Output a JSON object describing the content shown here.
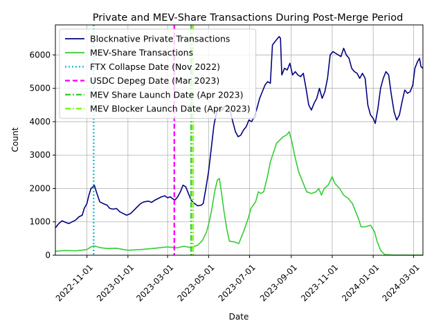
{
  "chart_data": {
    "type": "line",
    "title": "Private and MEV-Share Transactions During Post-Merge Period",
    "xlabel": "Date",
    "ylabel": "Count",
    "xlim": [
      "2022-09-15",
      "2024-03-15"
    ],
    "ylim": [
      0,
      6900
    ],
    "grid": true,
    "legend_position": "top-left",
    "x_ticks": [
      "2022-11-01",
      "2023-01-01",
      "2023-03-01",
      "2023-05-01",
      "2023-07-01",
      "2023-09-01",
      "2023-11-01",
      "2024-01-01",
      "2024-03-01"
    ],
    "y_ticks": [
      0,
      1000,
      2000,
      3000,
      4000,
      5000,
      6000
    ],
    "series": [
      {
        "name": "Blocknative Private Transactions",
        "color": "#000080",
        "style": "solid",
        "points": [
          [
            "2022-09-15",
            820
          ],
          [
            "2022-09-20",
            950
          ],
          [
            "2022-09-25",
            1030
          ],
          [
            "2022-10-01",
            980
          ],
          [
            "2022-10-05",
            950
          ],
          [
            "2022-10-10",
            1000
          ],
          [
            "2022-10-15",
            1050
          ],
          [
            "2022-10-20",
            1150
          ],
          [
            "2022-10-25",
            1200
          ],
          [
            "2022-10-28",
            1400
          ],
          [
            "2022-11-01",
            1550
          ],
          [
            "2022-11-04",
            1800
          ],
          [
            "2022-11-07",
            2000
          ],
          [
            "2022-11-10",
            2050
          ],
          [
            "2022-11-12",
            2100
          ],
          [
            "2022-11-15",
            1900
          ],
          [
            "2022-11-20",
            1600
          ],
          [
            "2022-11-25",
            1550
          ],
          [
            "2022-12-01",
            1500
          ],
          [
            "2022-12-05",
            1400
          ],
          [
            "2022-12-10",
            1380
          ],
          [
            "2022-12-15",
            1400
          ],
          [
            "2022-12-20",
            1300
          ],
          [
            "2022-12-25",
            1250
          ],
          [
            "2022-12-30",
            1200
          ],
          [
            "2023-01-05",
            1250
          ],
          [
            "2023-01-10",
            1350
          ],
          [
            "2023-01-15",
            1450
          ],
          [
            "2023-01-20",
            1550
          ],
          [
            "2023-01-25",
            1600
          ],
          [
            "2023-02-01",
            1620
          ],
          [
            "2023-02-05",
            1580
          ],
          [
            "2023-02-10",
            1650
          ],
          [
            "2023-02-15",
            1700
          ],
          [
            "2023-02-20",
            1750
          ],
          [
            "2023-02-25",
            1780
          ],
          [
            "2023-03-01",
            1720
          ],
          [
            "2023-03-05",
            1750
          ],
          [
            "2023-03-08",
            1700
          ],
          [
            "2023-03-12",
            1650
          ],
          [
            "2023-03-16",
            1750
          ],
          [
            "2023-03-20",
            1900
          ],
          [
            "2023-03-24",
            2100
          ],
          [
            "2023-03-28",
            2050
          ],
          [
            "2023-04-01",
            1850
          ],
          [
            "2023-04-05",
            1650
          ],
          [
            "2023-04-10",
            1550
          ],
          [
            "2023-04-15",
            1480
          ],
          [
            "2023-04-20",
            1500
          ],
          [
            "2023-04-23",
            1550
          ],
          [
            "2023-04-27",
            2000
          ],
          [
            "2023-05-01",
            2500
          ],
          [
            "2023-05-05",
            3200
          ],
          [
            "2023-05-09",
            3900
          ],
          [
            "2023-05-13",
            4300
          ],
          [
            "2023-05-17",
            4400
          ],
          [
            "2023-05-21",
            4350
          ],
          [
            "2023-05-25",
            4450
          ],
          [
            "2023-05-29",
            4500
          ],
          [
            "2023-06-02",
            4350
          ],
          [
            "2023-06-06",
            4000
          ],
          [
            "2023-06-10",
            3700
          ],
          [
            "2023-06-14",
            3550
          ],
          [
            "2023-06-18",
            3600
          ],
          [
            "2023-06-22",
            3750
          ],
          [
            "2023-06-26",
            3850
          ],
          [
            "2023-06-30",
            4050
          ],
          [
            "2023-07-04",
            4000
          ],
          [
            "2023-07-08",
            4150
          ],
          [
            "2023-07-12",
            4400
          ],
          [
            "2023-07-16",
            4700
          ],
          [
            "2023-07-20",
            4900
          ],
          [
            "2023-07-24",
            5100
          ],
          [
            "2023-07-28",
            5200
          ],
          [
            "2023-08-01",
            5150
          ],
          [
            "2023-08-04",
            6300
          ],
          [
            "2023-08-08",
            6400
          ],
          [
            "2023-08-12",
            6500
          ],
          [
            "2023-08-14",
            6550
          ],
          [
            "2023-08-16",
            6500
          ],
          [
            "2023-08-18",
            5400
          ],
          [
            "2023-08-22",
            5600
          ],
          [
            "2023-08-26",
            5550
          ],
          [
            "2023-08-30",
            5750
          ],
          [
            "2023-09-03",
            5400
          ],
          [
            "2023-09-07",
            5500
          ],
          [
            "2023-09-11",
            5400
          ],
          [
            "2023-09-15",
            5350
          ],
          [
            "2023-09-19",
            5450
          ],
          [
            "2023-09-23",
            5000
          ],
          [
            "2023-09-27",
            4500
          ],
          [
            "2023-10-01",
            4350
          ],
          [
            "2023-10-05",
            4550
          ],
          [
            "2023-10-09",
            4700
          ],
          [
            "2023-10-13",
            5000
          ],
          [
            "2023-10-17",
            4700
          ],
          [
            "2023-10-21",
            4900
          ],
          [
            "2023-10-25",
            5300
          ],
          [
            "2023-10-29",
            6000
          ],
          [
            "2023-11-02",
            6100
          ],
          [
            "2023-11-06",
            6050
          ],
          [
            "2023-11-10",
            6000
          ],
          [
            "2023-11-14",
            5950
          ],
          [
            "2023-11-18",
            6200
          ],
          [
            "2023-11-22",
            6000
          ],
          [
            "2023-11-26",
            5900
          ],
          [
            "2023-11-30",
            5600
          ],
          [
            "2023-12-04",
            5500
          ],
          [
            "2023-12-08",
            5450
          ],
          [
            "2023-12-12",
            5300
          ],
          [
            "2023-12-16",
            5450
          ],
          [
            "2023-12-20",
            5300
          ],
          [
            "2023-12-24",
            4500
          ],
          [
            "2023-12-28",
            4200
          ],
          [
            "2024-01-01",
            4100
          ],
          [
            "2024-01-04",
            3950
          ],
          [
            "2024-01-08",
            4400
          ],
          [
            "2024-01-12",
            5000
          ],
          [
            "2024-01-16",
            5300
          ],
          [
            "2024-01-20",
            5500
          ],
          [
            "2024-01-24",
            5400
          ],
          [
            "2024-01-28",
            4800
          ],
          [
            "2024-02-01",
            4300
          ],
          [
            "2024-02-05",
            4050
          ],
          [
            "2024-02-09",
            4200
          ],
          [
            "2024-02-13",
            4600
          ],
          [
            "2024-02-17",
            4950
          ],
          [
            "2024-02-21",
            4850
          ],
          [
            "2024-02-25",
            4900
          ],
          [
            "2024-02-29",
            5100
          ],
          [
            "2024-03-03",
            5600
          ],
          [
            "2024-03-07",
            5800
          ],
          [
            "2024-03-10",
            5900
          ],
          [
            "2024-03-12",
            5650
          ],
          [
            "2024-03-15",
            5600
          ]
        ]
      },
      {
        "name": "MEV-Share Transactions",
        "color": "#32cd32",
        "style": "solid",
        "points": [
          [
            "2022-09-15",
            120
          ],
          [
            "2022-10-01",
            140
          ],
          [
            "2022-10-15",
            130
          ],
          [
            "2022-11-01",
            170
          ],
          [
            "2022-11-07",
            250
          ],
          [
            "2022-11-12",
            280
          ],
          [
            "2022-11-20",
            230
          ],
          [
            "2022-12-01",
            200
          ],
          [
            "2022-12-15",
            210
          ],
          [
            "2023-01-01",
            150
          ],
          [
            "2023-01-20",
            170
          ],
          [
            "2023-02-10",
            210
          ],
          [
            "2023-03-01",
            250
          ],
          [
            "2023-03-15",
            220
          ],
          [
            "2023-03-25",
            270
          ],
          [
            "2023-04-05",
            230
          ],
          [
            "2023-04-15",
            300
          ],
          [
            "2023-04-22",
            450
          ],
          [
            "2023-04-28",
            700
          ],
          [
            "2023-05-02",
            1000
          ],
          [
            "2023-05-06",
            1400
          ],
          [
            "2023-05-10",
            1900
          ],
          [
            "2023-05-14",
            2250
          ],
          [
            "2023-05-17",
            2300
          ],
          [
            "2023-05-20",
            1900
          ],
          [
            "2023-05-24",
            1300
          ],
          [
            "2023-05-28",
            800
          ],
          [
            "2023-06-01",
            420
          ],
          [
            "2023-06-08",
            400
          ],
          [
            "2023-06-15",
            350
          ],
          [
            "2023-06-22",
            700
          ],
          [
            "2023-06-29",
            1100
          ],
          [
            "2023-07-03",
            1400
          ],
          [
            "2023-07-10",
            1600
          ],
          [
            "2023-07-14",
            1900
          ],
          [
            "2023-07-18",
            1850
          ],
          [
            "2023-07-22",
            1900
          ],
          [
            "2023-07-27",
            2300
          ],
          [
            "2023-08-01",
            2800
          ],
          [
            "2023-08-06",
            3100
          ],
          [
            "2023-08-10",
            3350
          ],
          [
            "2023-08-15",
            3450
          ],
          [
            "2023-08-20",
            3550
          ],
          [
            "2023-08-25",
            3600
          ],
          [
            "2023-08-29",
            3700
          ],
          [
            "2023-09-02",
            3400
          ],
          [
            "2023-09-06",
            3000
          ],
          [
            "2023-09-12",
            2500
          ],
          [
            "2023-09-18",
            2200
          ],
          [
            "2023-09-24",
            1900
          ],
          [
            "2023-10-01",
            1850
          ],
          [
            "2023-10-08",
            1900
          ],
          [
            "2023-10-12",
            2000
          ],
          [
            "2023-10-16",
            1800
          ],
          [
            "2023-10-20",
            2000
          ],
          [
            "2023-10-26",
            2100
          ],
          [
            "2023-11-01",
            2350
          ],
          [
            "2023-11-05",
            2150
          ],
          [
            "2023-11-12",
            2000
          ],
          [
            "2023-11-18",
            1800
          ],
          [
            "2023-11-25",
            1700
          ],
          [
            "2023-12-01",
            1550
          ],
          [
            "2023-12-06",
            1300
          ],
          [
            "2023-12-10",
            1100
          ],
          [
            "2023-12-14",
            850
          ],
          [
            "2023-12-20",
            850
          ],
          [
            "2023-12-28",
            900
          ],
          [
            "2024-01-03",
            700
          ],
          [
            "2024-01-07",
            400
          ],
          [
            "2024-01-12",
            150
          ],
          [
            "2024-01-18",
            20
          ],
          [
            "2024-02-01",
            5
          ],
          [
            "2024-03-15",
            5
          ]
        ]
      }
    ],
    "events": [
      {
        "name": "FTX Collapse Date (Nov 2022)",
        "date": "2022-11-11",
        "color": "#17becf",
        "style": "dotted"
      },
      {
        "name": "USDC Depeg Date (Mar 2023)",
        "date": "2023-03-11",
        "color": "#ff00ff",
        "style": "dashed"
      },
      {
        "name": "MEV Share Launch Date (Apr 2023)",
        "date": "2023-04-05",
        "color": "#32cd32",
        "style": "dashdot"
      },
      {
        "name": "MEV Blocker Launch Date (Apr 2023)",
        "date": "2023-04-08",
        "color": "#7cfc00",
        "style": "dashdot"
      }
    ]
  }
}
